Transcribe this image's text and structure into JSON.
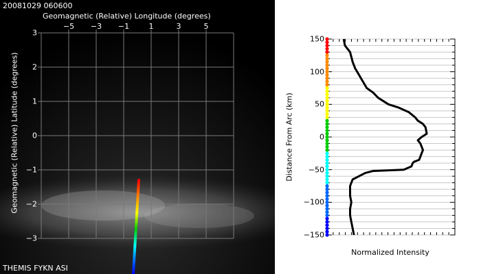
{
  "header": {
    "timestamp": "20081029 060600"
  },
  "footer": {
    "source_label": "THEMIS FYKN ASI"
  },
  "colors": {
    "arc_gradient": [
      "#ff0000",
      "#ff8800",
      "#ffff00",
      "#00cc00",
      "#00ffff",
      "#0066ff",
      "#0000ff"
    ]
  },
  "chart_data": [
    {
      "type": "image_overlay",
      "title": "",
      "xlabel": "Geomagnetic (Relative) Longitude (degrees)",
      "ylabel": "Geomagnetic (Relative) Latitude (degrees)",
      "xlim": [
        -7,
        7
      ],
      "ylim": [
        -3,
        3
      ],
      "x_tick_labels": [
        "−5",
        "−3",
        "−1",
        "1",
        "3",
        "5"
      ],
      "x_tick_values": [
        -5,
        -3,
        -1,
        1,
        3,
        5
      ],
      "y_tick_labels": [
        "3",
        "2",
        "1",
        "0",
        "−1",
        "−2",
        "−3"
      ],
      "y_tick_values": [
        3,
        2,
        1,
        0,
        -1,
        -2,
        -3
      ],
      "grid": true,
      "arc_line": {
        "x": [
          0.1,
          -0.15
        ],
        "y": [
          -1.3,
          -3.0
        ]
      }
    },
    {
      "type": "line",
      "title": "",
      "xlabel": "Normalized Intensity",
      "ylabel": "Distance From Arc (km)",
      "ylim": [
        -150,
        150
      ],
      "y_tick_labels": [
        "150",
        "100",
        "50",
        "0",
        "−50",
        "−100",
        "−150"
      ],
      "y_tick_values": [
        150,
        100,
        50,
        0,
        -50,
        -100,
        -150
      ],
      "grid": true,
      "series": [
        {
          "x": [
            0.13,
            0.14,
            0.18,
            0.2,
            0.22,
            0.25,
            0.28,
            0.31,
            0.36,
            0.4,
            0.48,
            0.56,
            0.64,
            0.69,
            0.71,
            0.75,
            0.77,
            0.78,
            0.74,
            0.71,
            0.73,
            0.75,
            0.74,
            0.73,
            0.72,
            0.68,
            0.67,
            0.66,
            0.6,
            0.36,
            0.3,
            0.25,
            0.2,
            0.18,
            0.18,
            0.19,
            0.18,
            0.18,
            0.19,
            0.2,
            0.21
          ],
          "y": [
            150,
            140,
            130,
            115,
            105,
            95,
            85,
            75,
            68,
            60,
            50,
            45,
            38,
            30,
            25,
            20,
            15,
            5,
            0,
            -5,
            -10,
            -20,
            -25,
            -30,
            -35,
            -38,
            -40,
            -45,
            -50,
            -52,
            -55,
            -60,
            -65,
            -75,
            -90,
            -100,
            -110,
            -120,
            -130,
            -140,
            -150
          ]
        }
      ]
    }
  ]
}
